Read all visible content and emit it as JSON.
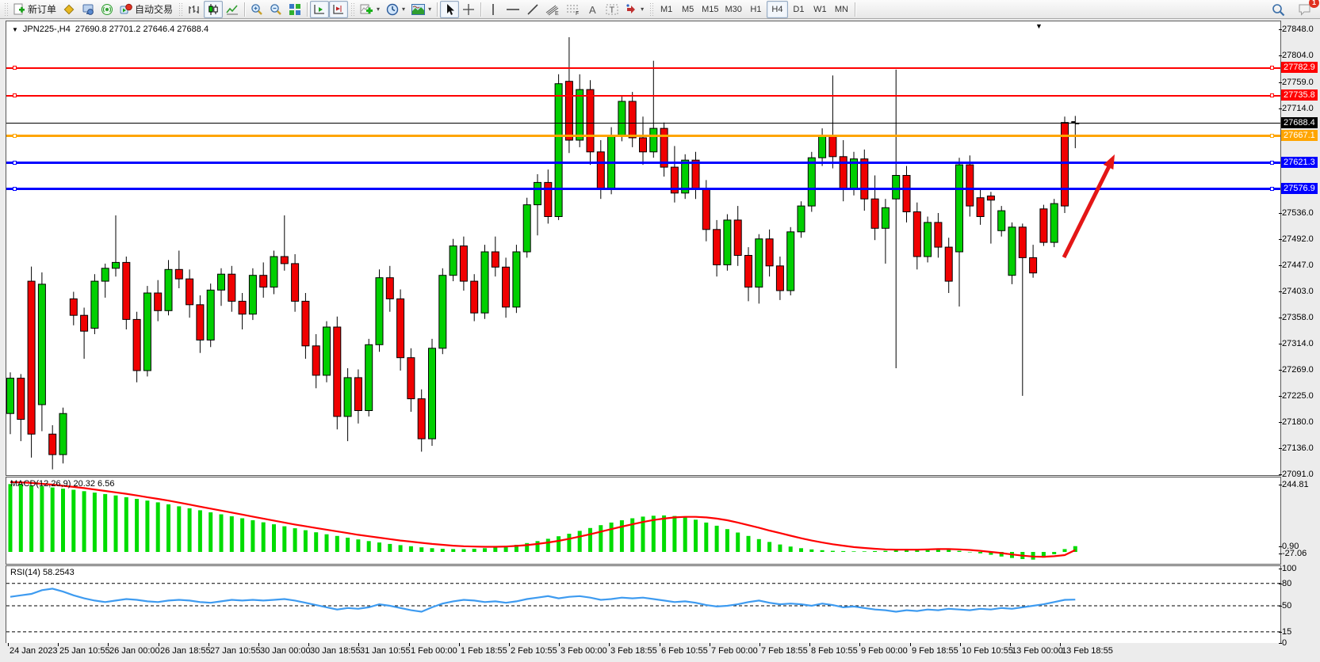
{
  "toolbar": {
    "new_order_label": "新订单",
    "auto_trading_label": "自动交易",
    "groups": [
      {
        "buttons": [
          {
            "name": "new-order-button",
            "icon": "new-order-icon",
            "label": "新订单"
          },
          {
            "name": "chart-profile-button",
            "icon": "gold-diamond-icon"
          },
          {
            "name": "market-watch-button",
            "icon": "monitor-icon"
          },
          {
            "name": "signal-button",
            "icon": "broadcast-icon"
          },
          {
            "name": "auto-trading-button",
            "icon": "autotrading-icon",
            "label": "自动交易"
          }
        ]
      },
      {
        "buttons": [
          {
            "name": "bar-chart-button",
            "icon": "bar-chart-icon"
          },
          {
            "name": "candlestick-button",
            "icon": "candlestick-icon",
            "pressed": true
          },
          {
            "name": "line-chart-button",
            "icon": "line-chart-icon"
          }
        ]
      },
      {
        "buttons": [
          {
            "name": "zoom-in-button",
            "icon": "zoom-in-icon"
          },
          {
            "name": "zoom-out-button",
            "icon": "zoom-out-icon"
          },
          {
            "name": "tile-windows-button",
            "icon": "tile-windows-icon"
          }
        ]
      },
      {
        "buttons": [
          {
            "name": "auto-scroll-button",
            "icon": "auto-scroll-icon",
            "pressed": true
          },
          {
            "name": "chart-shift-button",
            "icon": "chart-shift-icon",
            "pressed": true
          }
        ]
      },
      {
        "buttons": [
          {
            "name": "indicators-button",
            "icon": "indicators-icon",
            "dropdown": true
          },
          {
            "name": "periods-button",
            "icon": "clock-icon",
            "dropdown": true
          },
          {
            "name": "templates-button",
            "icon": "template-icon",
            "dropdown": true
          }
        ]
      },
      {
        "buttons": [
          {
            "name": "cursor-button",
            "icon": "cursor-icon",
            "pressed": true
          },
          {
            "name": "crosshair-button",
            "icon": "crosshair-icon"
          }
        ]
      },
      {
        "buttons": [
          {
            "name": "vertical-line-button",
            "icon": "vertical-line-icon"
          },
          {
            "name": "horizontal-line-button",
            "icon": "horizontal-line-icon"
          },
          {
            "name": "trendline-button",
            "icon": "trendline-icon"
          },
          {
            "name": "equidistant-channel-button",
            "icon": "channel-icon"
          },
          {
            "name": "fibonacci-button",
            "icon": "fibonacci-icon"
          },
          {
            "name": "text-button",
            "icon": "text-icon"
          },
          {
            "name": "text-label-button",
            "icon": "text-label-icon"
          },
          {
            "name": "arrows-button",
            "icon": "arrows-icon",
            "dropdown": true
          }
        ]
      },
      {
        "buttons": [
          {
            "name": "timeframe-m1",
            "label": "M1"
          },
          {
            "name": "timeframe-m5",
            "label": "M5"
          },
          {
            "name": "timeframe-m15",
            "label": "M15"
          },
          {
            "name": "timeframe-m30",
            "label": "M30"
          },
          {
            "name": "timeframe-h1",
            "label": "H1"
          },
          {
            "name": "timeframe-h4",
            "label": "H4",
            "pressed": true
          },
          {
            "name": "timeframe-d1",
            "label": "D1"
          },
          {
            "name": "timeframe-w1",
            "label": "W1"
          },
          {
            "name": "timeframe-mn",
            "label": "MN"
          }
        ]
      }
    ],
    "right_buttons": [
      {
        "name": "search-button",
        "icon": "search-icon"
      },
      {
        "name": "chat-button",
        "icon": "chat-icon",
        "badge": "1"
      }
    ]
  },
  "chart": {
    "title_symbol": "JPN225-,H4",
    "title_ohlc": "27690.8 27701.2 27646.4 27688.4",
    "price_axis_ticks": [
      "27848.0",
      "27804.0",
      "27759.0",
      "27714.0",
      "27536.0",
      "27492.0",
      "27447.0",
      "27403.0",
      "27358.0",
      "27314.0",
      "27269.0",
      "27225.0",
      "27180.0",
      "27136.0",
      "27091.0"
    ],
    "hlines": [
      {
        "price": 27782.9,
        "label": "27782.9",
        "color": "#ff0000",
        "thickness": 2,
        "handles": true
      },
      {
        "price": 27735.8,
        "label": "27735.8",
        "color": "#ff0000",
        "thickness": 2,
        "handles": true
      },
      {
        "price": 27688.4,
        "label": "27688.4",
        "color": "#000000",
        "thickness": 1,
        "handles": false
      },
      {
        "price": 27667.1,
        "label": "27667.1",
        "color": "#ffa500",
        "thickness": 3,
        "handles": true
      },
      {
        "price": 27621.3,
        "label": "27621.3",
        "color": "#0000ff",
        "thickness": 3,
        "handles": true
      },
      {
        "price": 27576.9,
        "label": "27576.9",
        "color": "#0000ff",
        "thickness": 3,
        "handles": true
      }
    ],
    "time_axis_labels": [
      "24 Jan 2023",
      "25 Jan 10:55",
      "26 Jan 00:00",
      "26 Jan 18:55",
      "27 Jan 10:55",
      "30 Jan 00:00",
      "30 Jan 18:55",
      "31 Jan 10:55",
      "1 Feb 00:00",
      "1 Feb 18:55",
      "2 Feb 10:55",
      "3 Feb 00:00",
      "3 Feb 18:55",
      "6 Feb 10:55",
      "7 Feb 00:00",
      "7 Feb 18:55",
      "8 Feb 10:55",
      "9 Feb 00:00",
      "9 Feb 18:55",
      "10 Feb 10:55",
      "13 Feb 00:00",
      "13 Feb 18:55"
    ],
    "colors": {
      "candle_up": "#00cf00",
      "candle_down": "#f00000",
      "wick": "#000000",
      "macd_hist": "#00dc00",
      "macd_signal": "#ff0000",
      "rsi_line": "#3e9bf0",
      "arrow": "#e41616"
    },
    "candles": [
      [
        27195,
        27265,
        27160,
        27255
      ],
      [
        27255,
        27262,
        27148,
        27185
      ],
      [
        27420,
        27445,
        27120,
        27160
      ],
      [
        27210,
        27435,
        27165,
        27415
      ],
      [
        27160,
        27175,
        27100,
        27125
      ],
      [
        27125,
        27205,
        27110,
        27195
      ],
      [
        27390,
        27402,
        27345,
        27362
      ],
      [
        27362,
        27375,
        27288,
        27335
      ],
      [
        27340,
        27432,
        27330,
        27420
      ],
      [
        27420,
        27450,
        27392,
        27442
      ],
      [
        27442,
        27532,
        27428,
        27452
      ],
      [
        27452,
        27462,
        27338,
        27355
      ],
      [
        27355,
        27368,
        27248,
        27268
      ],
      [
        27268,
        27412,
        27258,
        27400
      ],
      [
        27400,
        27422,
        27352,
        27370
      ],
      [
        27370,
        27456,
        27362,
        27440
      ],
      [
        27440,
        27472,
        27408,
        27424
      ],
      [
        27424,
        27440,
        27358,
        27380
      ],
      [
        27380,
        27396,
        27298,
        27320
      ],
      [
        27320,
        27416,
        27308,
        27405
      ],
      [
        27405,
        27442,
        27378,
        27432
      ],
      [
        27432,
        27446,
        27368,
        27386
      ],
      [
        27386,
        27400,
        27338,
        27364
      ],
      [
        27364,
        27442,
        27354,
        27430
      ],
      [
        27430,
        27452,
        27392,
        27410
      ],
      [
        27410,
        27472,
        27398,
        27462
      ],
      [
        27462,
        27532,
        27438,
        27450
      ],
      [
        27450,
        27466,
        27368,
        27386
      ],
      [
        27386,
        27400,
        27288,
        27310
      ],
      [
        27310,
        27330,
        27238,
        27260
      ],
      [
        27260,
        27352,
        27248,
        27342
      ],
      [
        27342,
        27360,
        27168,
        27190
      ],
      [
        27190,
        27272,
        27148,
        27256
      ],
      [
        27256,
        27270,
        27178,
        27200
      ],
      [
        27200,
        27322,
        27190,
        27312
      ],
      [
        27312,
        27440,
        27300,
        27426
      ],
      [
        27426,
        27446,
        27368,
        27390
      ],
      [
        27390,
        27406,
        27268,
        27290
      ],
      [
        27290,
        27306,
        27198,
        27220
      ],
      [
        27220,
        27236,
        27130,
        27152
      ],
      [
        27152,
        27322,
        27140,
        27306
      ],
      [
        27306,
        27442,
        27296,
        27430
      ],
      [
        27430,
        27492,
        27420,
        27480
      ],
      [
        27480,
        27496,
        27404,
        27420
      ],
      [
        27420,
        27432,
        27352,
        27366
      ],
      [
        27366,
        27482,
        27356,
        27470
      ],
      [
        27470,
        27496,
        27428,
        27444
      ],
      [
        27444,
        27460,
        27358,
        27376
      ],
      [
        27376,
        27482,
        27366,
        27470
      ],
      [
        27470,
        27562,
        27460,
        27550
      ],
      [
        27550,
        27602,
        27498,
        27588
      ],
      [
        27588,
        27610,
        27518,
        27530
      ],
      [
        27530,
        27772,
        27524,
        27756
      ],
      [
        27760,
        27835,
        27638,
        27660
      ],
      [
        27660,
        27772,
        27648,
        27746
      ],
      [
        27746,
        27762,
        27618,
        27640
      ],
      [
        27640,
        27660,
        27560,
        27578
      ],
      [
        27578,
        27682,
        27568,
        27666
      ],
      [
        27666,
        27736,
        27658,
        27726
      ],
      [
        27726,
        27742,
        27648,
        27664
      ],
      [
        27664,
        27700,
        27618,
        27640
      ],
      [
        27640,
        27795,
        27630,
        27680
      ],
      [
        27680,
        27690,
        27598,
        27614
      ],
      [
        27614,
        27650,
        27554,
        27570
      ],
      [
        27570,
        27636,
        27560,
        27626
      ],
      [
        27626,
        27640,
        27560,
        27578
      ],
      [
        27578,
        27592,
        27488,
        27508
      ],
      [
        27508,
        27524,
        27428,
        27448
      ],
      [
        27448,
        27534,
        27438,
        27524
      ],
      [
        27524,
        27548,
        27446,
        27464
      ],
      [
        27464,
        27478,
        27386,
        27410
      ],
      [
        27410,
        27500,
        27382,
        27492
      ],
      [
        27492,
        27508,
        27428,
        27446
      ],
      [
        27446,
        27462,
        27388,
        27404
      ],
      [
        27404,
        27512,
        27396,
        27504
      ],
      [
        27504,
        27556,
        27494,
        27548
      ],
      [
        27548,
        27640,
        27538,
        27630
      ],
      [
        27630,
        27680,
        27616,
        27668
      ],
      [
        27668,
        27770,
        27612,
        27632
      ],
      [
        27632,
        27660,
        27556,
        27576
      ],
      [
        27576,
        27640,
        27566,
        27628
      ],
      [
        27628,
        27644,
        27540,
        27560
      ],
      [
        27560,
        27600,
        27490,
        27510
      ],
      [
        27510,
        27560,
        27450,
        27545
      ],
      [
        27560,
        27780,
        27272,
        27600
      ],
      [
        27600,
        27616,
        27520,
        27538
      ],
      [
        27538,
        27554,
        27440,
        27462
      ],
      [
        27462,
        27530,
        27452,
        27520
      ],
      [
        27520,
        27536,
        27460,
        27478
      ],
      [
        27478,
        27494,
        27400,
        27420
      ],
      [
        27470,
        27630,
        27377,
        27618
      ],
      [
        27618,
        27634,
        27530,
        27548
      ],
      [
        27562,
        27578,
        27516,
        27530
      ],
      [
        27565,
        27572,
        27484,
        27558
      ],
      [
        27506,
        27548,
        27496,
        27540
      ],
      [
        27430,
        27520,
        27415,
        27512
      ],
      [
        27512,
        27518,
        27225,
        27460
      ],
      [
        27460,
        27482,
        27426,
        27434
      ],
      [
        27543,
        27550,
        27480,
        27486
      ],
      [
        27486,
        27560,
        27478,
        27552
      ],
      [
        27690,
        27700,
        27536,
        27548
      ],
      [
        27690.8,
        27701.2,
        27646.4,
        27688.4
      ]
    ]
  },
  "macd": {
    "label": "MACD(12,26,9) 20.32 6.56",
    "axis_labels": [
      "244.81",
      "0.90",
      "-27.06"
    ],
    "hist": [
      238,
      236,
      233,
      230,
      226,
      222,
      218,
      213,
      208,
      203,
      198,
      192,
      186,
      180,
      174,
      167,
      160,
      153,
      146,
      139,
      132,
      125,
      118,
      111,
      104,
      97,
      90,
      83,
      76,
      69,
      62,
      56,
      50,
      44,
      38,
      33,
      28,
      24,
      20,
      16,
      13,
      11,
      10,
      10,
      11,
      13,
      16,
      20,
      25,
      31,
      38,
      46,
      55,
      64,
      74,
      84,
      94,
      103,
      111,
      118,
      124,
      127,
      128,
      126,
      121,
      113,
      103,
      92,
      80,
      68,
      56,
      45,
      35,
      26,
      19,
      13,
      9,
      6,
      4,
      3,
      2,
      2,
      3,
      4,
      6,
      8,
      9,
      10,
      9,
      7,
      4,
      0,
      -5,
      -10,
      -16,
      -21,
      -25,
      -27,
      -20,
      -8,
      10,
      20.3
    ],
    "signal": [
      245,
      244,
      242,
      239,
      236,
      232,
      228,
      224,
      219,
      214,
      209,
      204,
      198,
      192,
      186,
      180,
      173,
      166,
      159,
      152,
      145,
      138,
      131,
      124,
      117,
      110,
      103,
      96,
      90,
      84,
      78,
      72,
      66,
      60,
      55,
      50,
      45,
      40,
      36,
      32,
      28,
      25,
      22,
      20,
      19,
      18,
      18,
      19,
      21,
      24,
      28,
      33,
      39,
      46,
      54,
      62,
      71,
      80,
      89,
      97,
      105,
      112,
      117,
      121,
      123,
      123,
      121,
      117,
      111,
      103,
      94,
      85,
      75,
      66,
      57,
      48,
      40,
      33,
      27,
      22,
      17,
      14,
      11,
      9,
      8,
      8,
      8,
      9,
      10,
      10,
      9,
      7,
      4,
      0,
      -4,
      -9,
      -13,
      -16,
      -17,
      -15,
      -11,
      6.6
    ]
  },
  "rsi": {
    "label": "RSI(14) 58.2543",
    "levels": [
      "100",
      "80",
      "50",
      "15",
      "0"
    ],
    "values": [
      62,
      64,
      66,
      71,
      73,
      69,
      64,
      60,
      57,
      55,
      57,
      59,
      58,
      56,
      55,
      57,
      58,
      57,
      55,
      54,
      56,
      58,
      57,
      58,
      57,
      58,
      59,
      57,
      54,
      51,
      48,
      45,
      47,
      46,
      48,
      52,
      50,
      47,
      44,
      42,
      48,
      53,
      56,
      58,
      57,
      55,
      56,
      54,
      56,
      59,
      61,
      63,
      60,
      62,
      63,
      61,
      58,
      59,
      61,
      60,
      61,
      59,
      57,
      55,
      56,
      54,
      51,
      49,
      50,
      52,
      55,
      57,
      54,
      52,
      53,
      52,
      50,
      53,
      51,
      48,
      49,
      47,
      45,
      44,
      42,
      44,
      43,
      45,
      44,
      46,
      45,
      44,
      46,
      45,
      47,
      46,
      48,
      50,
      52,
      55,
      58,
      58.25
    ]
  },
  "annotations": {
    "trend_arrow": {
      "direction": "up"
    }
  }
}
